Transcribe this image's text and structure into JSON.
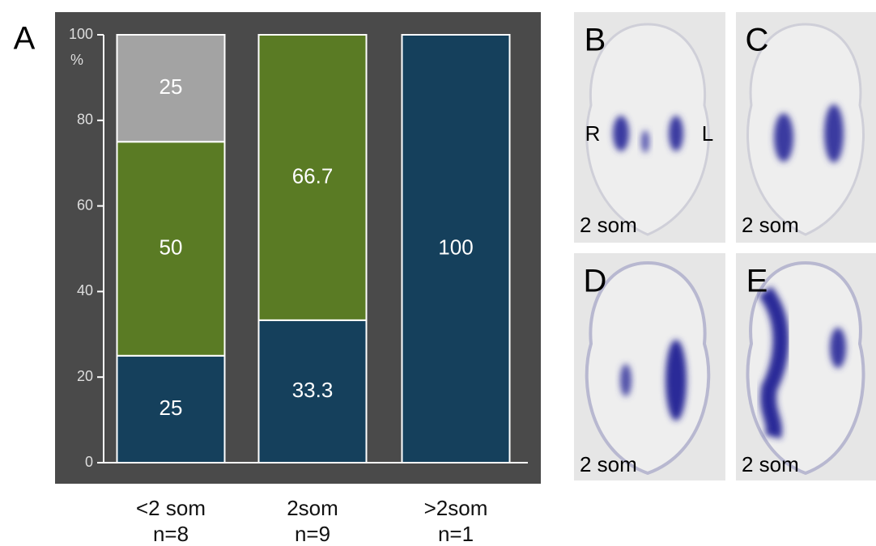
{
  "figure_label": "A",
  "chart_data": {
    "type": "stacked-bar",
    "ylabel": "%",
    "categories": [
      "<2 som",
      "2som",
      ">2som"
    ],
    "category_counts": [
      "n=8",
      "n=9",
      "n=1"
    ],
    "series": [
      {
        "color": "#15405c",
        "values": [
          25,
          33.3,
          100
        ]
      },
      {
        "color": "#5a7b24",
        "values": [
          50,
          66.7,
          null
        ]
      },
      {
        "color": "#a3a3a3",
        "values": [
          25,
          null,
          null
        ]
      }
    ],
    "ylim": [
      0,
      100
    ],
    "yticks": [
      0,
      20,
      40,
      60,
      80,
      100
    ]
  },
  "panels": [
    {
      "label": "B",
      "stage": "2 som",
      "markers": [
        "R",
        "L"
      ]
    },
    {
      "label": "C",
      "stage": "2 som"
    },
    {
      "label": "D",
      "stage": "2 som"
    },
    {
      "label": "E",
      "stage": "2 som"
    }
  ]
}
